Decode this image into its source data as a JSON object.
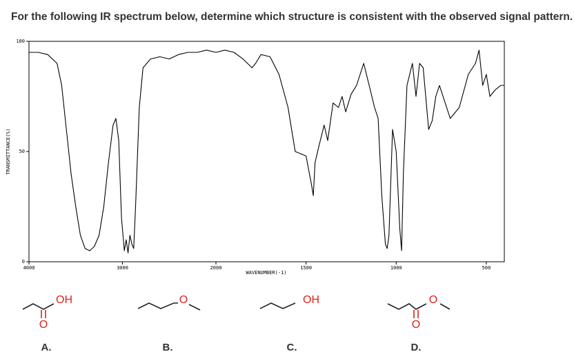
{
  "question": "For the following IR spectrum below, determine which structure is consistent with the observed signal pattern.",
  "chart_data": {
    "type": "line",
    "xlabel": "WAVENUMBER(-1)",
    "ylabel": "TRANSMITTANCE(%)",
    "color": "#000000",
    "xlim": [
      4000,
      400
    ],
    "ylim": [
      0,
      100
    ],
    "scale_break": 2000,
    "xticks": [
      4000,
      3000,
      2000,
      1500,
      1000,
      500
    ],
    "yticks": [
      0,
      50,
      100
    ],
    "x": [
      4000,
      3900,
      3800,
      3700,
      3650,
      3600,
      3550,
      3500,
      3450,
      3400,
      3350,
      3300,
      3250,
      3200,
      3150,
      3100,
      3070,
      3040,
      3010,
      2980,
      2960,
      2940,
      2920,
      2900,
      2880,
      2860,
      2820,
      2780,
      2700,
      2600,
      2500,
      2400,
      2300,
      2200,
      2100,
      2000,
      1950,
      1900,
      1850,
      1800,
      1780,
      1750,
      1700,
      1650,
      1600,
      1560,
      1500,
      1470,
      1460,
      1450,
      1430,
      1400,
      1380,
      1350,
      1320,
      1300,
      1280,
      1250,
      1220,
      1180,
      1150,
      1120,
      1100,
      1080,
      1060,
      1050,
      1040,
      1020,
      1000,
      980,
      970,
      960,
      940,
      910,
      890,
      870,
      850,
      820,
      800,
      780,
      760,
      700,
      650,
      600,
      560,
      540,
      520,
      500,
      480,
      450,
      420,
      400
    ],
    "values": [
      95,
      95,
      94,
      90,
      80,
      60,
      40,
      25,
      12,
      6,
      5,
      7,
      12,
      25,
      45,
      62,
      65,
      55,
      20,
      5,
      10,
      4,
      12,
      8,
      6,
      25,
      70,
      88,
      92,
      93,
      92,
      94,
      95,
      95,
      96,
      95,
      96,
      95,
      92,
      88,
      90,
      94,
      93,
      85,
      70,
      50,
      48,
      35,
      30,
      45,
      52,
      62,
      55,
      72,
      70,
      75,
      68,
      76,
      80,
      90,
      80,
      70,
      65,
      30,
      8,
      6,
      12,
      60,
      50,
      15,
      5,
      40,
      80,
      90,
      75,
      90,
      88,
      60,
      64,
      75,
      80,
      65,
      70,
      85,
      90,
      96,
      80,
      85,
      75,
      78,
      80,
      80
    ]
  },
  "options": [
    {
      "label": "A.",
      "atoms": [
        "OH",
        "O"
      ]
    },
    {
      "label": "B.",
      "atoms": [
        "O"
      ]
    },
    {
      "label": "C.",
      "atoms": [
        "OH"
      ]
    },
    {
      "label": "D.",
      "atoms": [
        "O",
        "O"
      ]
    }
  ]
}
